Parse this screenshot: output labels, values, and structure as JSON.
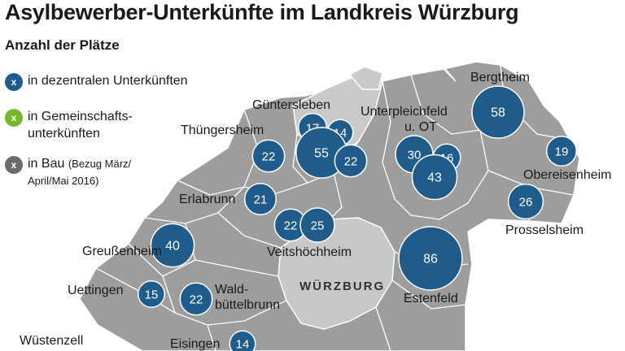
{
  "title": "Asylbewerber-Unterkünfte im Landkreis Würzburg",
  "subtitle": "Anzahl der Plätze",
  "colors": {
    "decentral": "#1f5c8c",
    "community": "#76b82a",
    "construction": "#6b6b6b",
    "district": "#9d9d9d",
    "city_area": "#c7c7c7",
    "border": "#ffffff"
  },
  "legend": [
    {
      "marker": "x",
      "text": "in dezentralen Unterkünften",
      "note": "",
      "category": "decentral"
    },
    {
      "marker": "x",
      "text": "in Gemeinschafts-",
      "text2": "unterkünften",
      "note": "",
      "category": "community"
    },
    {
      "marker": "x",
      "text": "in Bau",
      "note": "(Bezug März/",
      "note2": "April/Mai 2016)",
      "category": "construction"
    }
  ],
  "city": "WÜRZBURG",
  "places": [
    {
      "name": "Bergtheim"
    },
    {
      "name": "Güntersleben"
    },
    {
      "name": "Unterpleichfeld",
      "name2": "u. OT"
    },
    {
      "name": "Thüngersheim"
    },
    {
      "name": "Obereisenheim"
    },
    {
      "name": "Erlabrunn"
    },
    {
      "name": "Prosselsheim"
    },
    {
      "name": "Greußenheim"
    },
    {
      "name": "Veitshöchheim"
    },
    {
      "name": "Uettingen"
    },
    {
      "name": "Wald-",
      "name2": "büttelbrunn"
    },
    {
      "name": "Estenfeld"
    },
    {
      "name": "Wüstenzell"
    },
    {
      "name": "Eisingen"
    }
  ],
  "bubbles": [
    {
      "value": 58,
      "place": "Bergtheim",
      "category": "decentral"
    },
    {
      "value": 17,
      "place": "Güntersleben",
      "category": "decentral"
    },
    {
      "value": 14,
      "place": "Güntersleben",
      "category": "decentral"
    },
    {
      "value": 55,
      "place": "Güntersleben",
      "category": "decentral"
    },
    {
      "value": 22,
      "place": "Güntersleben",
      "category": "decentral"
    },
    {
      "value": 22,
      "place": "Thüngersheim",
      "category": "decentral"
    },
    {
      "value": 30,
      "place": "Unterpleichfeld",
      "category": "decentral"
    },
    {
      "value": 16,
      "place": "Unterpleichfeld",
      "category": "decentral"
    },
    {
      "value": 43,
      "place": "Unterpleichfeld",
      "category": "decentral"
    },
    {
      "value": 19,
      "place": "Obereisenheim",
      "category": "decentral"
    },
    {
      "value": 26,
      "place": "Prosselsheim",
      "category": "decentral"
    },
    {
      "value": 21,
      "place": "Erlabrunn",
      "category": "decentral"
    },
    {
      "value": 22,
      "place": "Veitshöchheim",
      "category": "decentral"
    },
    {
      "value": 25,
      "place": "Veitshöchheim",
      "category": "decentral"
    },
    {
      "value": 40,
      "place": "Greußenheim",
      "category": "decentral"
    },
    {
      "value": 86,
      "place": "Estenfeld",
      "category": "decentral"
    },
    {
      "value": 15,
      "place": "Uettingen",
      "category": "decentral"
    },
    {
      "value": 22,
      "place": "Waldbüttelbrunn",
      "category": "decentral"
    },
    {
      "value": 14,
      "place": "Eisingen",
      "category": "decentral"
    }
  ]
}
